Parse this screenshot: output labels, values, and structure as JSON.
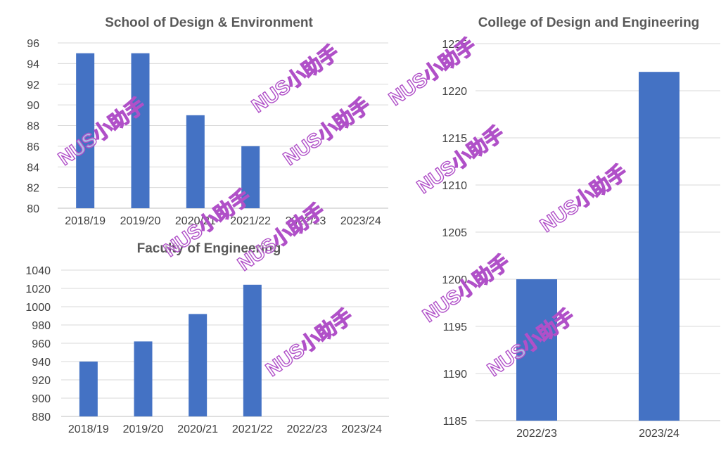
{
  "colors": {
    "bar": "#4472c4",
    "grid": "#d9d9d9",
    "text": "#404040",
    "title": "#595959",
    "watermark": "#b050c8"
  },
  "watermark_text": "NUS小助手",
  "chart_data": [
    {
      "id": "sde",
      "type": "bar",
      "title": "School of Design & Environment",
      "categories": [
        "2018/19",
        "2019/20",
        "2020/21",
        "2021/22",
        "2022/23",
        "2023/24"
      ],
      "values": [
        95,
        95,
        89,
        86,
        null,
        null
      ],
      "ylim": [
        80,
        96
      ],
      "yticks": [
        80,
        82,
        84,
        86,
        88,
        90,
        92,
        94,
        96
      ],
      "grid": true
    },
    {
      "id": "foe",
      "type": "bar",
      "title": "Faculty of Engineering",
      "categories": [
        "2018/19",
        "2019/20",
        "2020/21",
        "2021/22",
        "2022/23",
        "2023/24"
      ],
      "values": [
        940,
        962,
        992,
        1024,
        null,
        null
      ],
      "ylim": [
        880,
        1040
      ],
      "yticks": [
        880,
        900,
        920,
        940,
        960,
        980,
        1000,
        1020,
        1040
      ],
      "grid": true
    },
    {
      "id": "cde",
      "type": "bar",
      "title": "College of Design and Engineering",
      "categories": [
        "2022/23",
        "2023/24"
      ],
      "values": [
        1200,
        1222
      ],
      "ylim": [
        1185,
        1225
      ],
      "yticks": [
        1185,
        1190,
        1195,
        1200,
        1205,
        1210,
        1215,
        1220,
        1225
      ],
      "grid": true
    }
  ]
}
